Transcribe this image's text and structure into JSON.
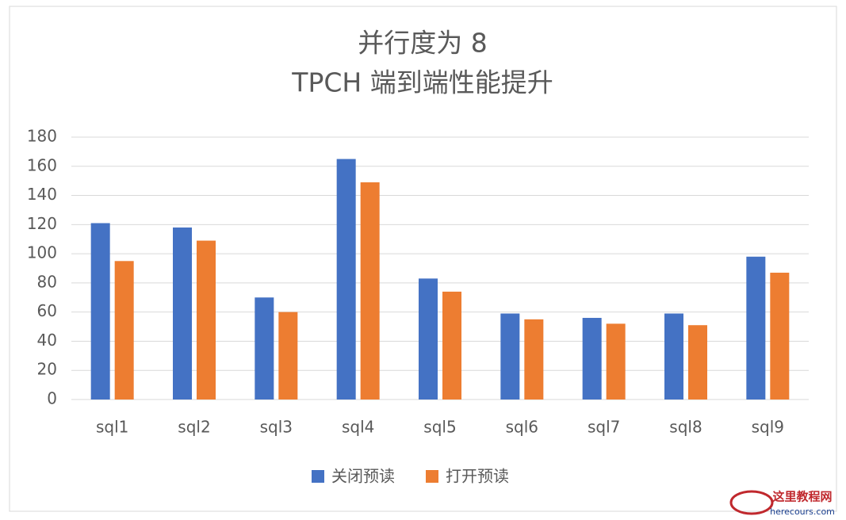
{
  "chart_data": {
    "type": "bar",
    "title": [
      "并行度为 8",
      "TPCH 端到端性能提升"
    ],
    "categories": [
      "sql1",
      "sql2",
      "sql3",
      "sql4",
      "sql5",
      "sql6",
      "sql7",
      "sql8",
      "sql9"
    ],
    "series": [
      {
        "name": "关闭预读",
        "color": "#4472c4",
        "values": [
          121,
          118,
          70,
          165,
          83,
          59,
          56,
          59,
          98
        ]
      },
      {
        "name": "打开预读",
        "color": "#ed7d31",
        "values": [
          95,
          109,
          60,
          149,
          74,
          55,
          52,
          51,
          87
        ]
      }
    ],
    "ylim": [
      0,
      180
    ],
    "yticks": [
      0,
      20,
      40,
      60,
      80,
      100,
      120,
      140,
      160,
      180
    ],
    "grid": true,
    "legend": "bottom"
  },
  "watermark": {
    "text": "这里教程网",
    "url": "herecours.com"
  }
}
